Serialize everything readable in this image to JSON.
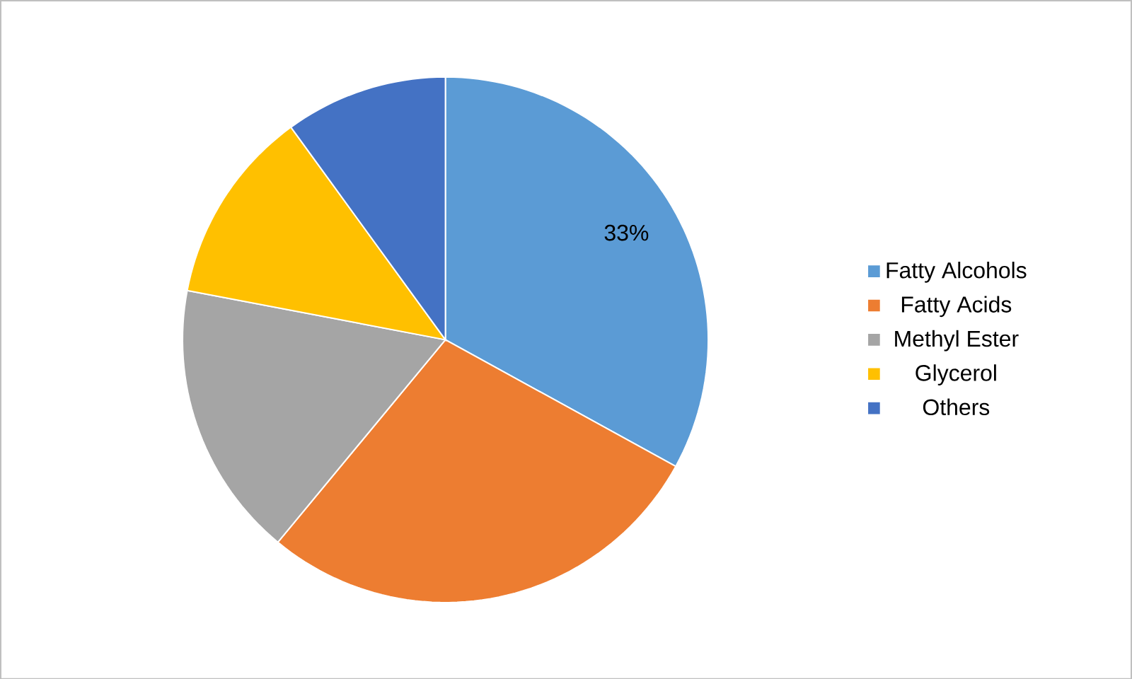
{
  "chart_data": {
    "type": "pie",
    "categories": [
      "Fatty Alcohols",
      "Fatty Acids",
      "Methyl Ester",
      "Glycerol",
      "Others"
    ],
    "values": [
      33,
      28,
      17,
      12,
      10
    ],
    "colors": [
      "#5b9bd5",
      "#ed7d31",
      "#a5a5a5",
      "#ffc000",
      "#4472c4"
    ],
    "value_labels": [
      "33%",
      null,
      null,
      null,
      null
    ],
    "legend": "right"
  }
}
